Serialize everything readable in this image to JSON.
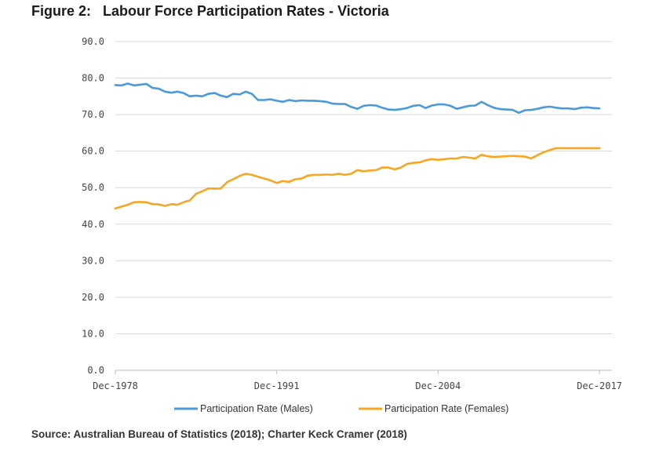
{
  "figure": {
    "number": "Figure 2:",
    "title": "Labour Force Participation Rates - Victoria"
  },
  "source": "Source: Australian Bureau of Statistics (2018); Charter Keck Cramer (2018)",
  "chart_data": {
    "type": "line",
    "title": "Labour Force Participation Rates - Victoria",
    "xlabel": "",
    "ylabel": "",
    "ylim": [
      0,
      90
    ],
    "xlim": [
      1978,
      2018
    ],
    "y_ticks": [
      "0.0",
      "10.0",
      "20.0",
      "30.0",
      "40.0",
      "50.0",
      "60.0",
      "70.0",
      "80.0",
      "90.0"
    ],
    "x_ticks": [
      {
        "label": "Dec-1978",
        "x": 1978
      },
      {
        "label": "Dec-1991",
        "x": 1991
      },
      {
        "label": "Dec-2004",
        "x": 2004
      },
      {
        "label": "Dec-2017",
        "x": 2017
      }
    ],
    "grid": "horizontal",
    "legend_position": "bottom",
    "series": [
      {
        "name": "Participation Rate (Males)",
        "color": "#4a9ad8",
        "x": [
          1978.0,
          1978.5,
          1979.0,
          1979.5,
          1980.0,
          1980.5,
          1981.0,
          1981.5,
          1982.0,
          1982.5,
          1983.0,
          1983.5,
          1984.0,
          1984.5,
          1985.0,
          1985.5,
          1986.0,
          1986.5,
          1987.0,
          1987.5,
          1988.0,
          1988.5,
          1989.0,
          1989.5,
          1990.0,
          1990.5,
          1991.0,
          1991.5,
          1992.0,
          1992.5,
          1993.0,
          1993.5,
          1994.0,
          1994.5,
          1995.0,
          1995.5,
          1996.0,
          1996.5,
          1997.0,
          1997.5,
          1998.0,
          1998.5,
          1999.0,
          1999.5,
          2000.0,
          2000.5,
          2001.0,
          2001.5,
          2002.0,
          2002.5,
          2003.0,
          2003.5,
          2004.0,
          2004.5,
          2005.0,
          2005.5,
          2006.0,
          2006.5,
          2007.0,
          2007.5,
          2008.0,
          2008.5,
          2009.0,
          2009.5,
          2010.0,
          2010.5,
          2011.0,
          2011.5,
          2012.0,
          2012.5,
          2013.0,
          2013.5,
          2014.0,
          2014.5,
          2015.0,
          2015.5,
          2016.0,
          2016.5,
          2017.0
        ],
        "y": [
          78.1,
          78.0,
          78.5,
          78.0,
          78.2,
          78.4,
          77.3,
          77.1,
          76.3,
          76.0,
          76.3,
          75.9,
          75.0,
          75.2,
          75.0,
          75.7,
          75.9,
          75.2,
          74.8,
          75.7,
          75.5,
          76.3,
          75.7,
          74.0,
          74.0,
          74.2,
          73.8,
          73.5,
          74.0,
          73.7,
          73.9,
          73.8,
          73.8,
          73.7,
          73.5,
          73.0,
          72.9,
          72.9,
          72.1,
          71.6,
          72.4,
          72.6,
          72.5,
          71.9,
          71.4,
          71.3,
          71.5,
          71.8,
          72.4,
          72.6,
          71.8,
          72.5,
          72.8,
          72.8,
          72.4,
          71.6,
          72.0,
          72.4,
          72.5,
          73.5,
          72.6,
          71.9,
          71.5,
          71.4,
          71.3,
          70.5,
          71.2,
          71.3,
          71.6,
          72.0,
          72.2,
          71.9,
          71.7,
          71.7,
          71.5,
          71.9,
          72.0,
          71.8,
          71.7
        ]
      },
      {
        "name": "Participation Rate (Females)",
        "color": "#f5a623",
        "x": [
          1978.0,
          1978.5,
          1979.0,
          1979.5,
          1980.0,
          1980.5,
          1981.0,
          1981.5,
          1982.0,
          1982.5,
          1983.0,
          1983.5,
          1984.0,
          1984.5,
          1985.0,
          1985.5,
          1986.0,
          1986.5,
          1987.0,
          1987.5,
          1988.0,
          1988.5,
          1989.0,
          1989.5,
          1990.0,
          1990.5,
          1991.0,
          1991.5,
          1992.0,
          1992.5,
          1993.0,
          1993.5,
          1994.0,
          1994.5,
          1995.0,
          1995.5,
          1996.0,
          1996.5,
          1997.0,
          1997.5,
          1998.0,
          1998.5,
          1999.0,
          1999.5,
          2000.0,
          2000.5,
          2001.0,
          2001.5,
          2002.0,
          2002.5,
          2003.0,
          2003.5,
          2004.0,
          2004.5,
          2005.0,
          2005.5,
          2006.0,
          2006.5,
          2007.0,
          2007.5,
          2008.0,
          2008.5,
          2009.0,
          2009.5,
          2010.0,
          2010.5,
          2011.0,
          2011.5,
          2012.0,
          2012.5,
          2013.0,
          2013.5,
          2014.0,
          2014.5,
          2015.0,
          2015.5,
          2016.0,
          2016.5,
          2017.0
        ],
        "y": [
          44.3,
          44.8,
          45.3,
          46.0,
          46.1,
          46.0,
          45.5,
          45.4,
          45.0,
          45.5,
          45.3,
          46.0,
          46.5,
          48.3,
          49.0,
          49.8,
          49.7,
          49.8,
          51.5,
          52.3,
          53.2,
          53.8,
          53.5,
          53.0,
          52.5,
          52.0,
          51.3,
          51.8,
          51.6,
          52.3,
          52.5,
          53.3,
          53.5,
          53.5,
          53.6,
          53.5,
          53.8,
          53.5,
          53.8,
          54.8,
          54.5,
          54.7,
          54.8,
          55.5,
          55.5,
          55.0,
          55.5,
          56.5,
          56.8,
          56.9,
          57.5,
          57.8,
          57.6,
          57.8,
          58.0,
          58.0,
          58.4,
          58.2,
          58.0,
          59.0,
          58.6,
          58.4,
          58.5,
          58.6,
          58.7,
          58.6,
          58.5,
          58.0,
          58.9,
          59.7,
          60.3,
          60.8,
          60.8,
          60.8,
          60.8,
          60.8,
          60.8,
          60.8,
          60.8
        ]
      }
    ]
  }
}
